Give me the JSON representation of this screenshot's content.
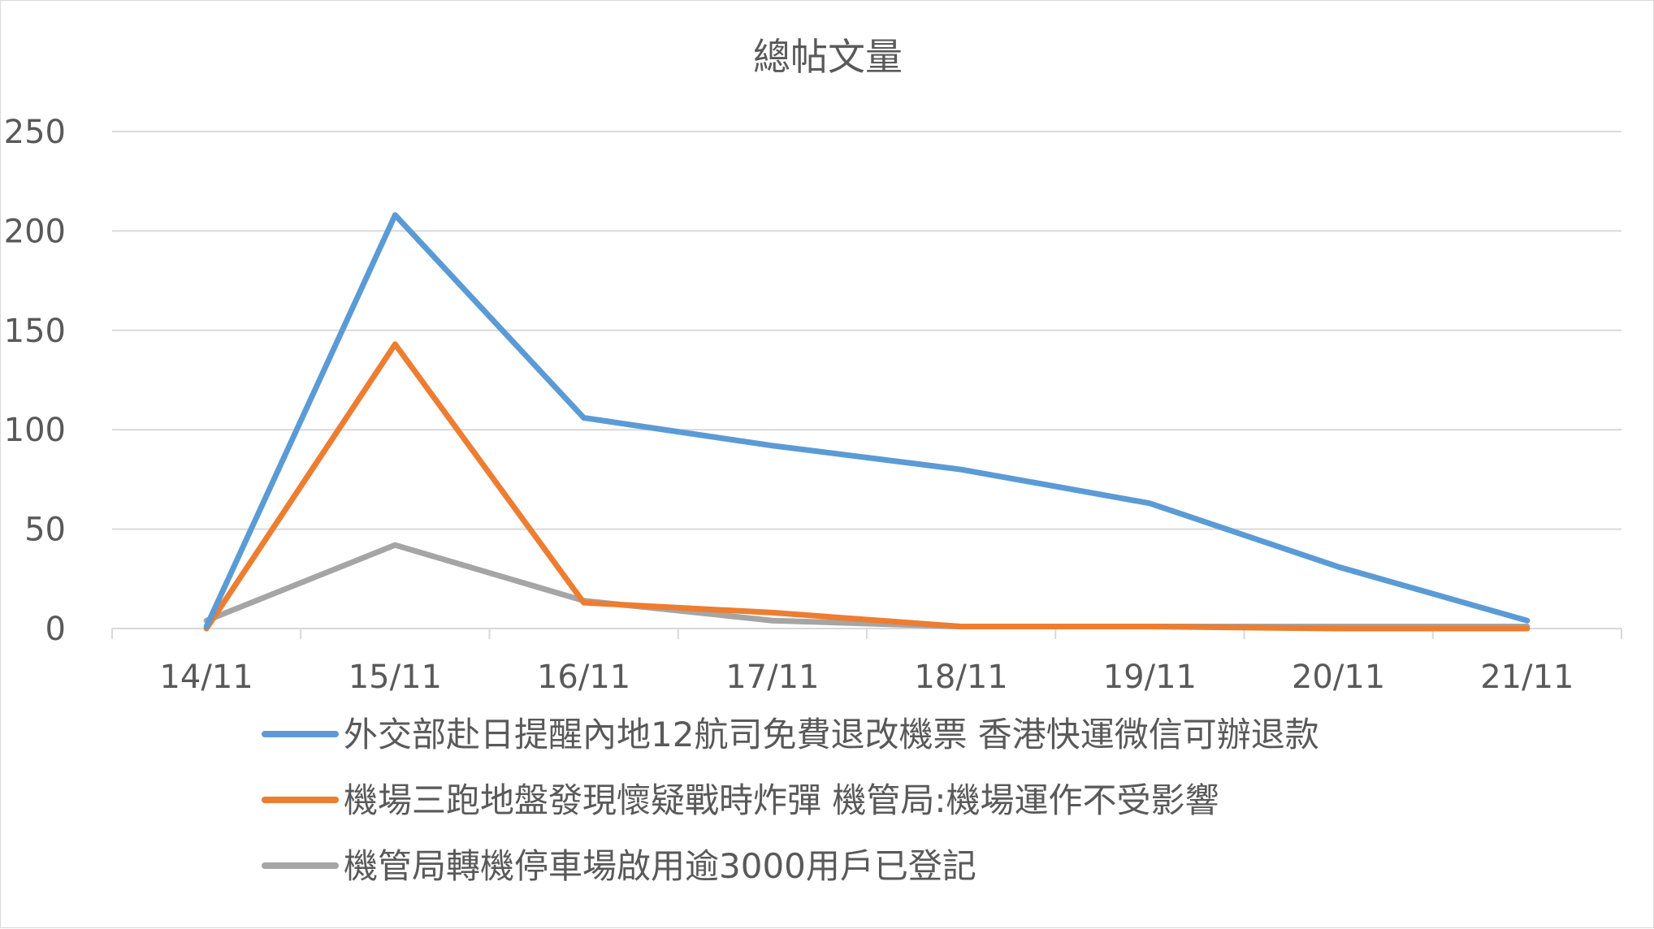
{
  "chart_data": {
    "type": "line",
    "title": "總帖文量",
    "xlabel": "",
    "ylabel": "",
    "categories": [
      "14/11",
      "15/11",
      "16/11",
      "17/11",
      "18/11",
      "19/11",
      "20/11",
      "21/11"
    ],
    "ylim": [
      0,
      250
    ],
    "yticks": [
      0,
      50,
      100,
      150,
      200,
      250
    ],
    "grid": true,
    "legend_position": "bottom",
    "series": [
      {
        "name": "外交部赴日提醒內地12航司免費退改機票 香港快運微信可辦退款",
        "color": "#5b9bd5",
        "values": [
          1,
          208,
          106,
          92,
          80,
          63,
          31,
          4
        ]
      },
      {
        "name": "機場三跑地盤發現懷疑戰時炸彈 機管局:機場運作不受影響",
        "color": "#ed7d31",
        "values": [
          0,
          143,
          13,
          8,
          1,
          1,
          0,
          0
        ]
      },
      {
        "name": "機管局轉機停車場啟用逾3000用戶已登記",
        "color": "#a5a5a5",
        "values": [
          4,
          42,
          14,
          4,
          1,
          1,
          1,
          1
        ]
      }
    ]
  }
}
